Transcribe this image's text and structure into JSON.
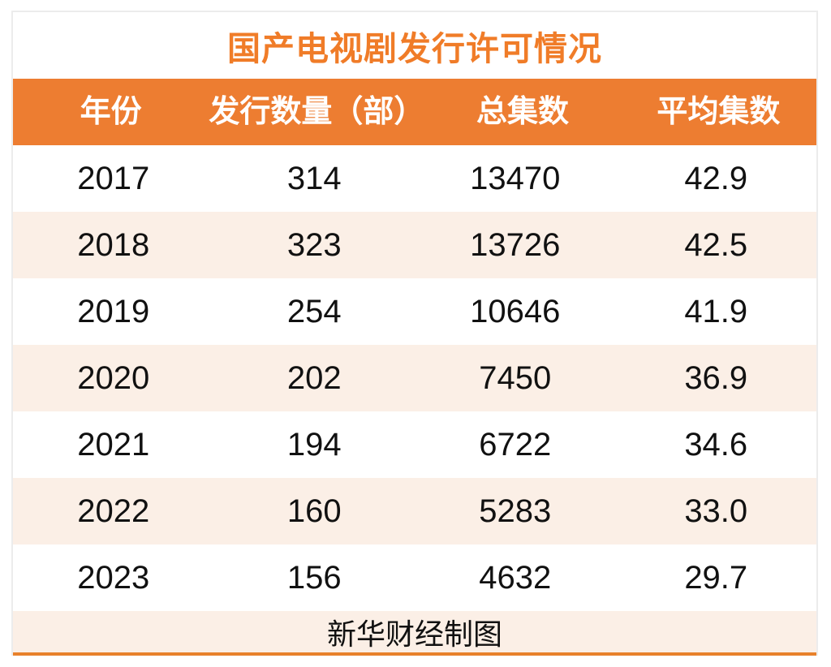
{
  "title": "国产电视剧发行许可情况",
  "table": {
    "columns": [
      "年份",
      "发行数量（部）",
      "总集数",
      "平均集数"
    ],
    "rows": [
      [
        "2017",
        "314",
        "13470",
        "42.9"
      ],
      [
        "2018",
        "323",
        "13726",
        "42.5"
      ],
      [
        "2019",
        "254",
        "10646",
        "41.9"
      ],
      [
        "2020",
        "202",
        "7450",
        "36.9"
      ],
      [
        "2021",
        "194",
        "6722",
        "34.6"
      ],
      [
        "2022",
        "160",
        "5283",
        "33.0"
      ],
      [
        "2023",
        "156",
        "4632",
        "29.7"
      ]
    ]
  },
  "footer": {
    "credit": "新华财经制图"
  },
  "colors": {
    "accent_orange": "#ED7D31",
    "title_orange": "#F07C28",
    "bottom_line_orange": "#E8812B",
    "band_peach": "#FBEFE6",
    "border_gray": "#ECECEC",
    "header_text": "#FFFFFF",
    "body_text": "#111111"
  },
  "chart_data": {
    "type": "table",
    "title": "国产电视剧发行许可情况",
    "columns": [
      "年份",
      "发行数量（部）",
      "总集数",
      "平均集数"
    ],
    "rows": [
      [
        2017,
        314,
        13470,
        42.9
      ],
      [
        2018,
        323,
        13726,
        42.5
      ],
      [
        2019,
        254,
        10646,
        41.9
      ],
      [
        2020,
        202,
        7450,
        36.9
      ],
      [
        2021,
        194,
        6722,
        34.6
      ],
      [
        2022,
        160,
        5283,
        33.0
      ],
      [
        2023,
        156,
        4632,
        29.7
      ]
    ],
    "source_note": "新华财经制图",
    "layout": {
      "header_background": "#ED7D31",
      "row_banding": [
        "white",
        "#FBEFE6"
      ],
      "all_text_centered": true
    }
  }
}
